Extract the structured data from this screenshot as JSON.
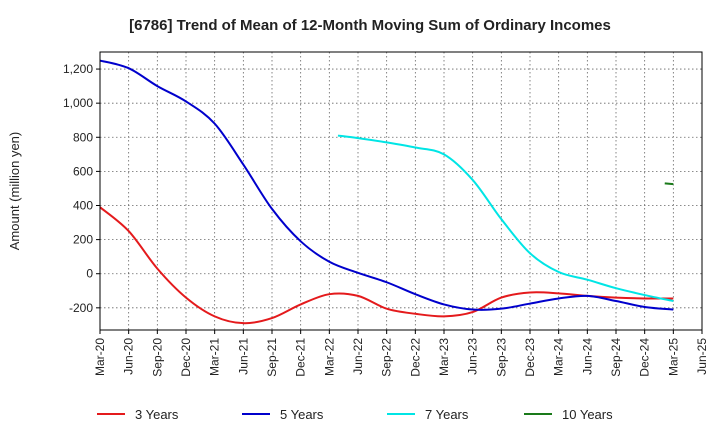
{
  "chart_data": {
    "type": "line",
    "title": "[6786]  Trend of Mean of 12-Month Moving Sum of Ordinary Incomes",
    "xlabel": "",
    "ylabel": "Amount (million yen)",
    "x_ticks": [
      "Mar-20",
      "Jun-20",
      "Sep-20",
      "Dec-20",
      "Mar-21",
      "Jun-21",
      "Sep-21",
      "Dec-21",
      "Mar-22",
      "Jun-22",
      "Sep-22",
      "Dec-22",
      "Mar-23",
      "Jun-23",
      "Sep-23",
      "Dec-23",
      "Mar-24",
      "Jun-24",
      "Sep-24",
      "Dec-24",
      "Mar-25",
      "Jun-25"
    ],
    "y_ticks": [
      -200,
      0,
      200,
      400,
      600,
      800,
      1000,
      1200
    ],
    "y_tick_labels": [
      "-200",
      "0",
      "200",
      "400",
      "600",
      "800",
      "1,000",
      "1,200"
    ],
    "ylim": [
      -330,
      1300
    ],
    "grid": true,
    "legend_position": "bottom",
    "series": [
      {
        "name": "3 Years",
        "color": "#e41a1c",
        "points": [
          [
            0,
            390
          ],
          [
            1,
            250
          ],
          [
            2,
            30
          ],
          [
            3,
            -140
          ],
          [
            4,
            -250
          ],
          [
            5,
            -290
          ],
          [
            6,
            -260
          ],
          [
            7,
            -180
          ],
          [
            8,
            -120
          ],
          [
            9,
            -130
          ],
          [
            10,
            -205
          ],
          [
            11,
            -235
          ],
          [
            12,
            -250
          ],
          [
            13,
            -225
          ],
          [
            14,
            -140
          ],
          [
            15,
            -110
          ],
          [
            16,
            -115
          ],
          [
            17,
            -130
          ],
          [
            18,
            -140
          ],
          [
            19,
            -145
          ],
          [
            20,
            -145
          ]
        ]
      },
      {
        "name": "5 Years",
        "color": "#0000cc",
        "points": [
          [
            0,
            1250
          ],
          [
            1,
            1205
          ],
          [
            2,
            1100
          ],
          [
            3,
            1010
          ],
          [
            4,
            880
          ],
          [
            5,
            640
          ],
          [
            6,
            380
          ],
          [
            7,
            190
          ],
          [
            8,
            70
          ],
          [
            9,
            5
          ],
          [
            10,
            -50
          ],
          [
            11,
            -120
          ],
          [
            12,
            -180
          ],
          [
            13,
            -210
          ],
          [
            14,
            -205
          ],
          [
            15,
            -175
          ],
          [
            16,
            -145
          ],
          [
            17,
            -130
          ],
          [
            18,
            -160
          ],
          [
            19,
            -195
          ],
          [
            20,
            -210
          ]
        ]
      },
      {
        "name": "7 Years",
        "color": "#00e5e5",
        "points": [
          [
            8.3,
            810
          ],
          [
            9,
            795
          ],
          [
            10,
            770
          ],
          [
            11,
            740
          ],
          [
            12,
            700
          ],
          [
            13,
            550
          ],
          [
            14,
            320
          ],
          [
            15,
            120
          ],
          [
            16,
            10
          ],
          [
            17,
            -35
          ],
          [
            18,
            -85
          ],
          [
            19,
            -125
          ],
          [
            20,
            -160
          ]
        ]
      },
      {
        "name": "10 Years",
        "color": "#1a7a1a",
        "points": [
          [
            19.7,
            530
          ],
          [
            20,
            525
          ]
        ]
      }
    ]
  }
}
